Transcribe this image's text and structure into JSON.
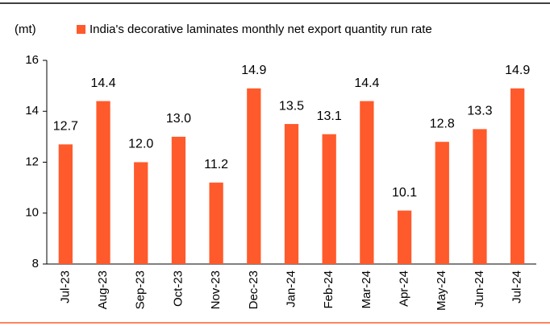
{
  "chart_data": {
    "type": "bar",
    "y_label": "(mt)",
    "categories": [
      "Jul-23",
      "Aug-23",
      "Sep-23",
      "Oct-23",
      "Nov-23",
      "Dec-23",
      "Jan-24",
      "Feb-24",
      "Mar-24",
      "Apr-24",
      "May-24",
      "Jun-24",
      "Jul-24"
    ],
    "series": [
      {
        "name": "India's decorative laminates monthly net export quantity run rate",
        "color": "#ff5a2b",
        "values": [
          12.7,
          14.4,
          12.0,
          13.0,
          11.2,
          14.9,
          13.5,
          13.1,
          14.4,
          10.1,
          12.8,
          13.3,
          14.9
        ],
        "value_labels": [
          "12.7",
          "14.4",
          "12.0",
          "13.0",
          "11.2",
          "14.9",
          "13.5",
          "13.1",
          "14.4",
          "10.1",
          "12.8",
          "13.3",
          "14.9"
        ]
      }
    ],
    "ylim": [
      8,
      16
    ],
    "yticks": [
      8,
      10,
      12,
      14,
      16
    ],
    "grid": false,
    "legend": "top"
  }
}
